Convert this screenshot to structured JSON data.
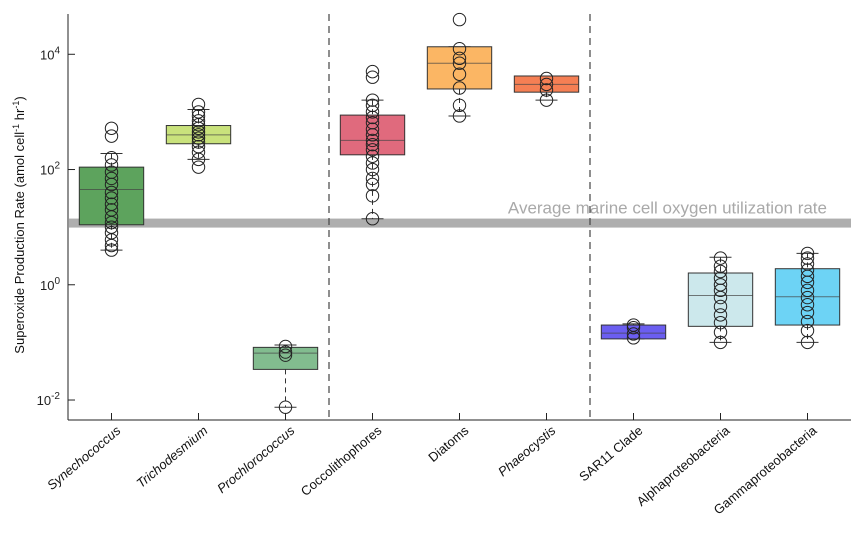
{
  "chart_data": {
    "type": "box",
    "ylabel": "Superoxide Production Rate (amol cell",
    "ylabel_sup1": "-1",
    "ylabel_mid": " hr",
    "ylabel_sup2": "-1",
    "ylabel_end": ")",
    "yscale": "log",
    "ylim": [
      0.0045,
      50000
    ],
    "y_ticks": [
      {
        "value": 0.01,
        "base": "10",
        "exp": "-2"
      },
      {
        "value": 1,
        "base": "10",
        "exp": "0"
      },
      {
        "value": 100,
        "base": "10",
        "exp": "2"
      },
      {
        "value": 10000,
        "base": "10",
        "exp": "4"
      }
    ],
    "reference_line": {
      "value": 12,
      "label": "Average marine cell oxygen utilization rate",
      "color": "#aaaaaa"
    },
    "group_separators_after": [
      3,
      6
    ],
    "categories": [
      {
        "label": "Synechococcus",
        "italic": true,
        "color": "#5da35d",
        "q1": 11,
        "median": 45,
        "q3": 110,
        "whisker_low": 4,
        "whisker_high": 190,
        "points": [
          4,
          4.8,
          6,
          8,
          10,
          12,
          15,
          20,
          25,
          32,
          40,
          55,
          70,
          90,
          120,
          160,
          380,
          520
        ]
      },
      {
        "label": "Trichodesmium",
        "italic": true,
        "color": "#c9e27c",
        "q1": 280,
        "median": 400,
        "q3": 580,
        "whisker_low": 150,
        "whisker_high": 1100,
        "points": [
          110,
          150,
          200,
          250,
          300,
          350,
          400,
          450,
          520,
          600,
          700,
          850,
          1000,
          1350
        ]
      },
      {
        "label": "Prochlorococcus",
        "italic": true,
        "color": "#82bc8f",
        "q1": 0.034,
        "median": 0.065,
        "q3": 0.082,
        "whisker_low": 0.0075,
        "whisker_high": 0.09,
        "points": [
          0.0075,
          0.06,
          0.068,
          0.085
        ]
      },
      {
        "label": "Coccolithophores",
        "italic": false,
        "color": "#e06a7d",
        "q1": 180,
        "median": 320,
        "q3": 880,
        "whisker_low": 14,
        "whisker_high": 1600,
        "points": [
          14,
          35,
          55,
          70,
          100,
          130,
          170,
          220,
          270,
          320,
          400,
          500,
          650,
          800,
          1000,
          1300,
          1600,
          4000,
          5000
        ]
      },
      {
        "label": "Diatoms",
        "italic": false,
        "color": "#fbb664",
        "q1": 2500,
        "median": 7000,
        "q3": 13500,
        "whisker_low": 850,
        "whisker_high": 13500,
        "points": [
          850,
          1300,
          2600,
          4500,
          7000,
          8500,
          12500,
          40000
        ]
      },
      {
        "label": "Phaeocystis",
        "italic": true,
        "color": "#f57f54",
        "q1": 2200,
        "median": 3000,
        "q3": 4200,
        "whisker_low": 1600,
        "whisker_high": 4200,
        "points": [
          1600,
          2400,
          3000,
          3800
        ]
      },
      {
        "label": "SAR11 Clade",
        "italic": false,
        "color": "#6b5ef0",
        "q1": 0.115,
        "median": 0.145,
        "q3": 0.2,
        "whisker_low": 0.115,
        "whisker_high": 0.21,
        "points": [
          0.12,
          0.14,
          0.18,
          0.2
        ]
      },
      {
        "label": "Alphaproteobacteria",
        "italic": false,
        "color": "#cce8ec",
        "q1": 0.19,
        "median": 0.65,
        "q3": 1.6,
        "whisker_low": 0.1,
        "whisker_high": 3,
        "points": [
          0.1,
          0.15,
          0.22,
          0.3,
          0.42,
          0.6,
          0.8,
          1.0,
          1.3,
          1.7,
          2.1,
          2.9
        ]
      },
      {
        "label": "Gammaproteobacteria",
        "italic": false,
        "color": "#6dd3f5",
        "q1": 0.2,
        "median": 0.62,
        "q3": 1.9,
        "whisker_low": 0.1,
        "whisker_high": 3.5,
        "points": [
          0.1,
          0.16,
          0.23,
          0.33,
          0.45,
          0.6,
          0.8,
          1.1,
          1.4,
          1.8,
          2.3,
          2.9,
          3.5
        ]
      }
    ]
  }
}
